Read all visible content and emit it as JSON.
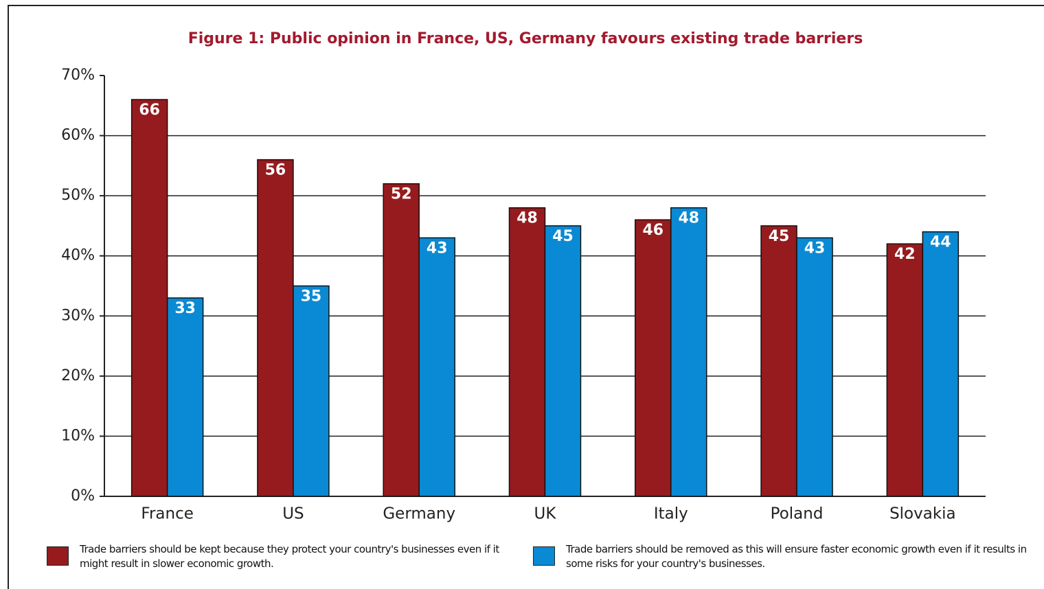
{
  "chart_data": {
    "type": "bar",
    "title": "Figure 1: Public opinion in France, US, Germany favours existing trade barriers",
    "categories": [
      "France",
      "US",
      "Germany",
      "UK",
      "Italy",
      "Poland",
      "Slovakia"
    ],
    "series": [
      {
        "name": "Trade barriers should be kept because they protect your country's businesses even if it might result in slower economic growth.",
        "color": "#961b1e",
        "values": [
          66,
          56,
          52,
          48,
          46,
          45,
          42
        ]
      },
      {
        "name": "Trade barriers should be removed as this will ensure faster economic growth even if it results in some risks for your country's businesses.",
        "color": "#0a8ad4",
        "values": [
          33,
          35,
          43,
          45,
          48,
          43,
          44
        ]
      }
    ],
    "ylim": [
      0,
      70
    ],
    "yticks": [
      {
        "value": 0,
        "label": "0%"
      },
      {
        "value": 10,
        "label": "10%"
      },
      {
        "value": 20,
        "label": "20%"
      },
      {
        "value": 30,
        "label": "30%"
      },
      {
        "value": 40,
        "label": "40%"
      },
      {
        "value": 50,
        "label": "50%"
      },
      {
        "value": 60,
        "label": "60%"
      },
      {
        "value": 70,
        "label": "70%"
      }
    ],
    "grid": true,
    "legend": "bottom"
  }
}
